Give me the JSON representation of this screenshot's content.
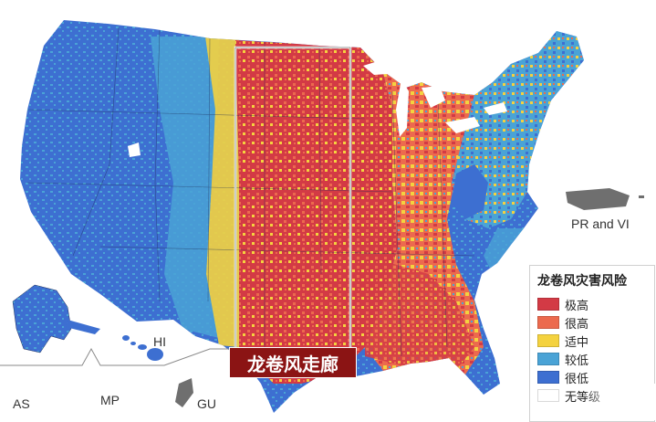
{
  "legend": {
    "title": "龙卷风灾害风险",
    "items": [
      {
        "label": "极高",
        "color": "#d33a45"
      },
      {
        "label": "很高",
        "color": "#ec6a4e"
      },
      {
        "label": "适中",
        "color": "#f4d23f"
      },
      {
        "label": "较低",
        "color": "#4aa3d6"
      },
      {
        "label": "很低",
        "color": "#3d6fd1"
      },
      {
        "label": "无等级",
        "color": "#ffffff"
      }
    ]
  },
  "corridor": {
    "label": "龙卷风走廊"
  },
  "territories": {
    "pr_vi": "PR and VI",
    "hi": "HI",
    "as": "AS",
    "mp": "MP",
    "gu": "GU"
  },
  "colors": {
    "very_high": "#d33a45",
    "high": "#ec6a4e",
    "moderate": "#f4d23f",
    "low": "#4aa3d6",
    "very_low": "#3d6fd1",
    "territory_gray": "#6f6f6f"
  }
}
